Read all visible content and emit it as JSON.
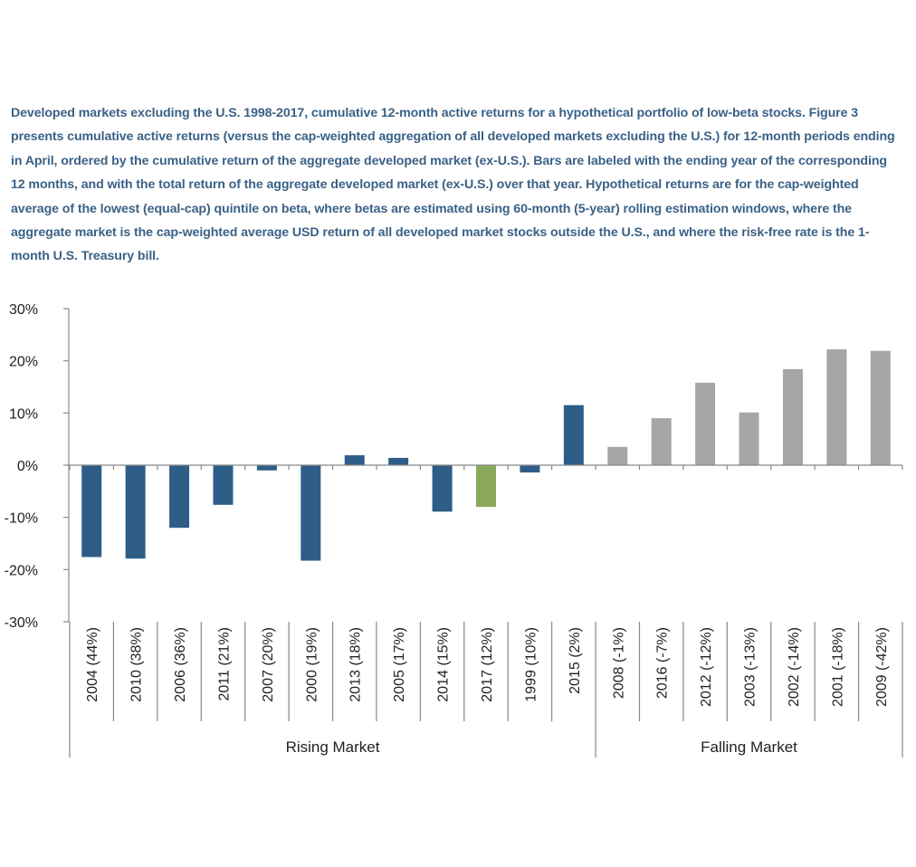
{
  "caption": "Developed markets excluding the U.S. 1998-2017, cumulative 12-month active returns for a hypothetical portfolio of low-beta stocks. Figure 3 presents cumulative active returns (versus the cap-weighted aggregation of all developed markets excluding the U.S.) for 12-month periods ending in April, ordered by the cumulative return of the aggregate developed market (ex-U.S.).  Bars are labeled with the ending year of the corresponding 12 months, and with the total return of the aggregate developed market (ex-U.S.) over that year. Hypothetical returns are for the cap-weighted average of the lowest (equal-cap) quintile on beta, where betas are estimated using 60-month (5-year) rolling estimation windows, where the aggregate market is the cap-weighted average USD return of all developed market stocks outside the U.S., and where the risk-free rate is the 1-month U.S. Treasury bill.",
  "colors": {
    "rising": "#2e5d88",
    "highlight": "#8ba95a",
    "falling": "#a6a6a6",
    "axis": "#888888"
  },
  "chart_data": {
    "type": "bar",
    "title": "",
    "xlabel": "",
    "ylabel": "",
    "ylim": [
      -30,
      30
    ],
    "yticks": [
      30,
      20,
      10,
      0,
      -10,
      -20,
      -30
    ],
    "ytick_labels": [
      "30%",
      "20%",
      "10%",
      "0%",
      "-10%",
      "-20%",
      "-30%"
    ],
    "categories": [
      "2004 (44%)",
      "2010 (38%)",
      "2006 (36%)",
      "2011 (21%)",
      "2007 (20%)",
      "2000 (19%)",
      "2013 (18%)",
      "2005 (17%)",
      "2014 (15%)",
      "2017 (12%)",
      "1999 (10%)",
      "2015 (2%)",
      "2008 (-1%)",
      "2016 (-7%)",
      "2012 (-12%)",
      "2003 (-13%)",
      "2002 (-14%)",
      "2001 (-18%)",
      "2009 (-42%)"
    ],
    "values": [
      -17.6,
      -17.9,
      -12.0,
      -7.6,
      -1.0,
      -18.3,
      1.9,
      1.4,
      -8.9,
      -8.0,
      -1.4,
      11.5,
      3.5,
      9.0,
      15.8,
      10.1,
      18.4,
      22.2,
      21.9
    ],
    "bar_groups": [
      "rising",
      "rising",
      "rising",
      "rising",
      "rising",
      "rising",
      "rising",
      "rising",
      "rising",
      "highlight",
      "rising",
      "rising",
      "falling",
      "falling",
      "falling",
      "falling",
      "falling",
      "falling",
      "falling"
    ],
    "groups": [
      {
        "label": "Rising Market",
        "start": 0,
        "end": 11
      },
      {
        "label": "Falling Market",
        "start": 12,
        "end": 18
      }
    ]
  }
}
